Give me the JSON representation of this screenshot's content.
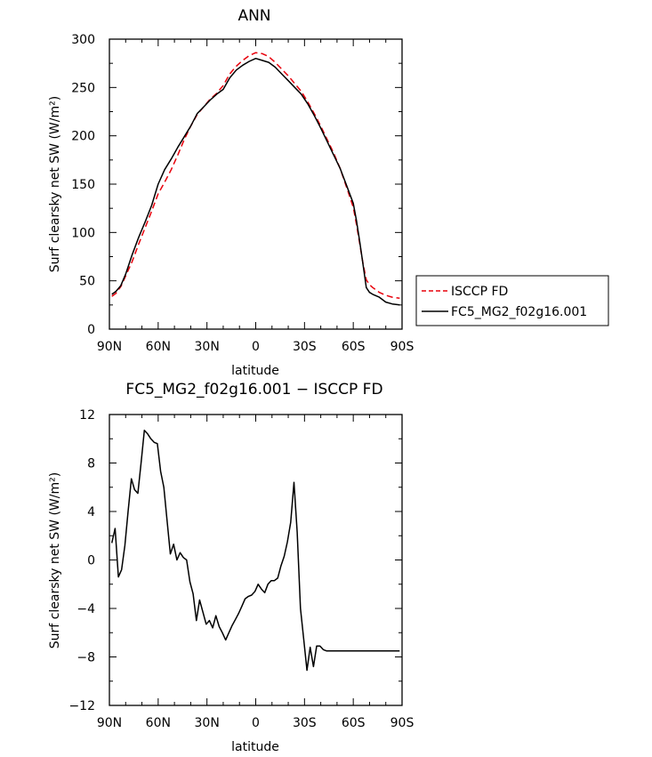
{
  "charts": [
    {
      "title": "ANN",
      "xlabel": "latitude",
      "ylabel": "Surf clearsky net SW (W/m²)"
    },
    {
      "title": "FC5_MG2_f02g16.001 − ISCCP FD",
      "xlabel": "latitude",
      "ylabel": "Surf clearsky net SW (W/m²)"
    }
  ],
  "chart_data": [
    {
      "type": "line",
      "title": "ANN",
      "xlabel": "latitude",
      "ylabel": "Surf clearsky net SW (W/m²)",
      "xlim": [
        90,
        -90
      ],
      "ylim": [
        0,
        300
      ],
      "xticks": [
        90,
        60,
        30,
        0,
        -30,
        -60,
        -90
      ],
      "xtick_labels": [
        "90N",
        "60N",
        "30N",
        "0",
        "30S",
        "60S",
        "90S"
      ],
      "yticks": [
        0,
        50,
        100,
        150,
        200,
        250,
        300
      ],
      "ytick_labels": [
        "0",
        "50",
        "100",
        "150",
        "200",
        "250",
        "300"
      ],
      "legend_position": "outside-right",
      "series": [
        {
          "name": "ISCCP FD",
          "color": "#e8000b",
          "dash": "dashed",
          "x": [
            88.5,
            86,
            83,
            80,
            76,
            72,
            68,
            64,
            60,
            56,
            52,
            48,
            44,
            40,
            36,
            32,
            28,
            24,
            20,
            16,
            12,
            8,
            4,
            0,
            -4,
            -8,
            -12,
            -16,
            -20,
            -24,
            -28,
            -32,
            -36,
            -40,
            -44,
            -48,
            -52,
            -56,
            -60,
            -62,
            -64,
            -66,
            -68,
            -70,
            -72,
            -76,
            -80,
            -84,
            -88.5
          ],
          "y": [
            34,
            37,
            44,
            55,
            70,
            88,
            105,
            122,
            140,
            152,
            165,
            180,
            196,
            210,
            222,
            230,
            238,
            244,
            252,
            264,
            272,
            278,
            283,
            286,
            285,
            282,
            276,
            269,
            262,
            254,
            246,
            235,
            223,
            210,
            196,
            182,
            166,
            146,
            126,
            108,
            88,
            68,
            51,
            46,
            43,
            38,
            35,
            33,
            32
          ]
        },
        {
          "name": "FC5_MG2_f02g16.001",
          "color": "#000000",
          "dash": "solid",
          "x": [
            88.5,
            86,
            83,
            80,
            76,
            72,
            68,
            64,
            60,
            56,
            52,
            48,
            44,
            40,
            36,
            32,
            28,
            24,
            20,
            16,
            12,
            8,
            4,
            0,
            -4,
            -8,
            -12,
            -16,
            -20,
            -24,
            -28,
            -32,
            -36,
            -40,
            -44,
            -48,
            -52,
            -56,
            -60,
            -62,
            -64,
            -66,
            -68,
            -70,
            -72,
            -76,
            -80,
            -84,
            -88.5
          ],
          "y": [
            36,
            39,
            45,
            57,
            77,
            95,
            111,
            128,
            150,
            165,
            176,
            188,
            199,
            210,
            223,
            230,
            237,
            243,
            248,
            260,
            268,
            273,
            277,
            280,
            278,
            276,
            271,
            264,
            257,
            250,
            243,
            233,
            221,
            208,
            194,
            180,
            166,
            148,
            130,
            112,
            90,
            67,
            43,
            38,
            36,
            33,
            28,
            26,
            25
          ]
        }
      ]
    },
    {
      "type": "line",
      "title": "FC5_MG2_f02g16.001 − ISCCP FD",
      "xlabel": "latitude",
      "ylabel": "Surf clearsky net SW (W/m²)",
      "xlim": [
        90,
        -90
      ],
      "ylim": [
        -12,
        12
      ],
      "xticks": [
        90,
        60,
        30,
        0,
        -30,
        -60,
        -90
      ],
      "xtick_labels": [
        "90N",
        "60N",
        "30N",
        "0",
        "30S",
        "60S",
        "90S"
      ],
      "yticks": [
        -12,
        -8,
        -4,
        0,
        4,
        8,
        12
      ],
      "ytick_labels": [
        "−12",
        "−8",
        "−4",
        "0",
        "4",
        "8",
        "12"
      ],
      "series": [
        {
          "color": "#000000",
          "dash": "solid",
          "x": [
            88.5,
            86.5,
            84.5,
            82.5,
            80.5,
            78.5,
            76.5,
            74.5,
            72.5,
            70.5,
            68.5,
            66.5,
            64.5,
            62.5,
            60.5,
            58.5,
            56.5,
            54.5,
            52.5,
            50.5,
            48.5,
            46.5,
            44.5,
            42.5,
            40.5,
            38.5,
            36.5,
            34.5,
            32.5,
            30.5,
            28.5,
            26.5,
            24.5,
            22.5,
            20.5,
            18.5,
            16.5,
            14.5,
            12.5,
            10.5,
            8.5,
            6.5,
            4.5,
            2.5,
            0.5,
            -1.5,
            -3.5,
            -5.5,
            -7.5,
            -9.5,
            -11.5,
            -13.5,
            -15.5,
            -17.5,
            -19.5,
            -21.5,
            -23.5,
            -25.5,
            -27.5,
            -29.5,
            -31.5,
            -33.5,
            -35.5,
            -37.5,
            -39.5,
            -41.5,
            -43.5,
            -45.5,
            -47.5,
            -49.5,
            -51.5,
            -53.5,
            -55.5,
            -57.5,
            -59.5,
            -61.5,
            -63.5,
            -65.5,
            -67.5,
            -69.5,
            -71.5,
            -73.5,
            -75.5,
            -77.5,
            -79.5,
            -81.5,
            -83.5,
            -85.5,
            -87.5,
            -88.5
          ],
          "y": [
            1.4,
            2.6,
            -1.4,
            -0.8,
            1.2,
            4.0,
            6.7,
            5.8,
            5.5,
            8.0,
            10.7,
            10.4,
            10.0,
            9.7,
            9.6,
            7.3,
            6.0,
            3.2,
            0.5,
            1.3,
            0.0,
            0.6,
            0.2,
            0.0,
            -1.8,
            -2.8,
            -5.0,
            -3.3,
            -4.3,
            -5.3,
            -5.0,
            -5.6,
            -4.6,
            -5.5,
            -6.0,
            -6.6,
            -6.0,
            -5.4,
            -4.9,
            -4.4,
            -3.8,
            -3.2,
            -3.0,
            -2.9,
            -2.6,
            -2.0,
            -2.4,
            -2.7,
            -2.0,
            -1.7,
            -1.7,
            -1.5,
            -0.5,
            0.3,
            1.5,
            3.1,
            6.4,
            2.3,
            -4.0,
            -6.5,
            -9.1,
            -7.2,
            -8.8,
            -7.1,
            -7.1,
            -7.4,
            -7.5,
            -7.5,
            -7.5,
            -7.5,
            -7.5,
            -7.5,
            -7.5,
            -7.5,
            -7.5,
            -7.5,
            -7.5,
            -7.5,
            -7.5,
            -7.5,
            -7.5,
            -7.5,
            -7.5,
            -7.5,
            -7.5,
            -7.5,
            -7.5,
            -7.5,
            -7.5,
            -7.5
          ]
        }
      ]
    }
  ]
}
